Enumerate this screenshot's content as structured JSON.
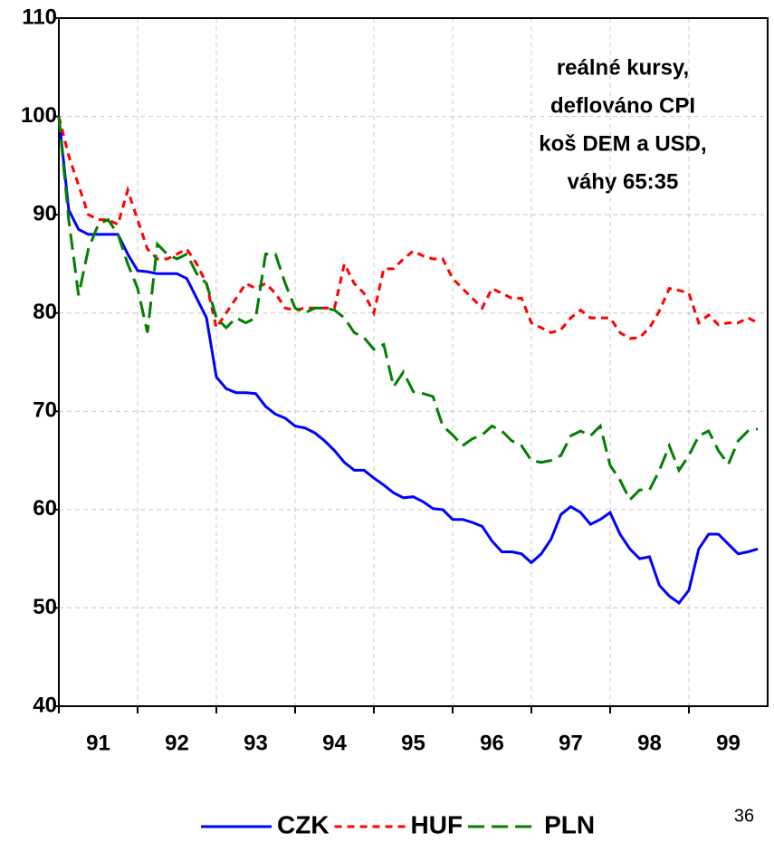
{
  "chart_data": {
    "type": "line",
    "annotation": [
      "reálné kursy,",
      "deflováno CPI",
      "koš DEM a USD,",
      "váhy 65:35"
    ],
    "x": [
      91,
      91.125,
      91.25,
      91.375,
      91.5,
      91.625,
      91.75,
      91.875,
      92,
      92.125,
      92.25,
      92.375,
      92.5,
      92.625,
      92.75,
      92.875,
      93,
      93.125,
      93.25,
      93.375,
      93.5,
      93.625,
      93.75,
      93.875,
      94,
      94.125,
      94.25,
      94.375,
      94.5,
      94.625,
      94.75,
      94.875,
      95,
      95.125,
      95.25,
      95.375,
      95.5,
      95.625,
      95.75,
      95.875,
      96,
      96.125,
      96.25,
      96.375,
      96.5,
      96.625,
      96.75,
      96.875,
      97,
      97.125,
      97.25,
      97.375,
      97.5,
      97.625,
      97.75,
      97.875,
      98,
      98.125,
      98.25,
      98.375,
      98.5,
      98.625,
      98.75,
      98.875,
      99,
      99.125,
      99.25,
      99.375,
      99.5,
      99.625,
      99.75,
      99.875
    ],
    "series": [
      {
        "name": "CZK",
        "color": "#0000ff",
        "dash": "solid",
        "values": [
          100,
          90.5,
          88.5,
          88,
          88,
          88,
          88,
          86,
          84.3,
          84.2,
          84,
          84,
          84,
          83.5,
          81.5,
          79.5,
          73.5,
          72.3,
          71.9,
          71.9,
          71.8,
          70.5,
          69.7,
          69.3,
          68.5,
          68.3,
          67.8,
          67,
          66,
          64.8,
          64,
          64,
          63.2,
          62.5,
          61.7,
          61.2,
          61.3,
          60.8,
          60.1,
          60,
          59,
          59,
          58.7,
          58.3,
          56.8,
          55.7,
          55.7,
          55.5,
          54.6,
          55.5,
          57,
          59.5,
          60.3,
          59.7,
          58.5,
          59,
          59.7,
          57.5,
          56,
          55,
          55.2,
          52.3,
          51.2,
          50.5,
          51.8,
          56,
          57.5,
          57.5,
          56.5,
          55.5,
          55.7,
          56
        ]
      },
      {
        "name": "HUF",
        "color": "#ff0000",
        "dash": "short",
        "values": [
          100,
          96,
          93,
          90,
          89.5,
          89.5,
          89,
          92.5,
          89.5,
          86.5,
          85.5,
          85.5,
          86,
          86.5,
          85,
          83,
          78.5,
          80,
          81.5,
          83,
          82.5,
          83,
          82,
          80.5,
          80.3,
          80.5,
          80.5,
          80.5,
          80.5,
          85,
          83,
          82,
          80,
          84.5,
          84.5,
          85.5,
          86.3,
          85.8,
          85.5,
          85.5,
          83.5,
          82.5,
          81.5,
          80.5,
          82.5,
          82,
          81.5,
          81.5,
          79,
          78.5,
          78,
          78.3,
          79.5,
          80.3,
          79.5,
          79.5,
          79.5,
          78,
          77.4,
          77.5,
          78.5,
          80.2,
          82.5,
          82.3,
          82,
          79,
          79.8,
          78.8,
          79,
          79,
          79.5,
          79
        ]
      },
      {
        "name": "PLN",
        "color": "#007f00",
        "dash": "long",
        "values": [
          100,
          89.5,
          81.8,
          86.5,
          89,
          89.5,
          88,
          85,
          82.5,
          78,
          87,
          86,
          85.5,
          86,
          84,
          83,
          79.5,
          78.5,
          79.5,
          79,
          79.5,
          86,
          86,
          83,
          80.5,
          80,
          80.5,
          80.5,
          80.3,
          79.5,
          78,
          77.5,
          76.3,
          76.8,
          72.5,
          74,
          72,
          71.8,
          71.5,
          68.5,
          67.6,
          66.5,
          67.2,
          67.6,
          68.5,
          68,
          67,
          66.5,
          65,
          64.8,
          65,
          65.5,
          67.5,
          68,
          67.5,
          68.5,
          64.5,
          63,
          61,
          62,
          62,
          64,
          66.5,
          64,
          65.5,
          67.5,
          68,
          66,
          64.6,
          67,
          68,
          68.2
        ]
      }
    ],
    "xlim": [
      91,
      100
    ],
    "xticks": [
      91,
      92,
      93,
      94,
      95,
      96,
      97,
      98,
      99
    ],
    "ylim": [
      40,
      110
    ],
    "yticks": [
      40,
      50,
      60,
      70,
      80,
      90,
      100,
      110
    ],
    "grid": true,
    "legend": "bottom"
  },
  "page_number": "36"
}
